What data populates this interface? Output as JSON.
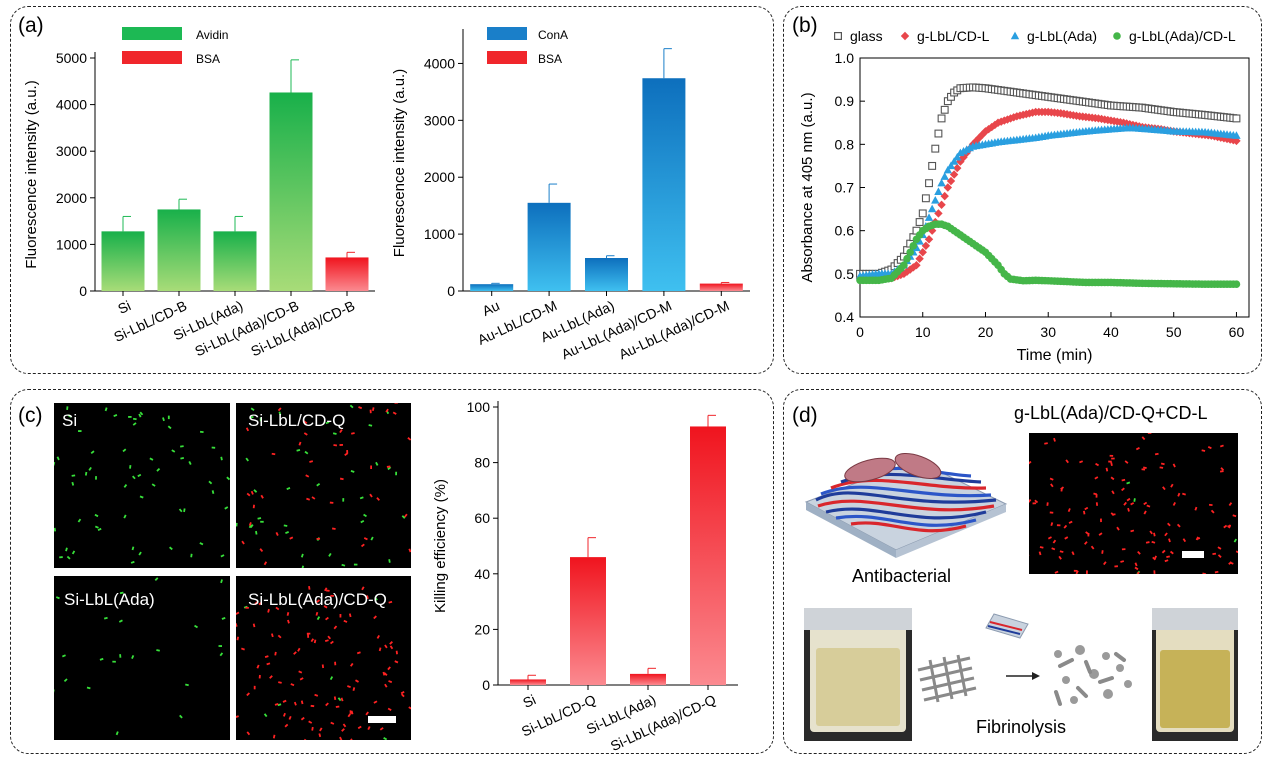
{
  "panels": {
    "a": "(a)",
    "b": "(b)",
    "c": "(c)",
    "d": "(d)"
  },
  "chart_data": [
    {
      "id": "a1",
      "type": "bar",
      "ylabel": "Fluorescence intensity (a.u.)",
      "ylim": [
        0,
        5000
      ],
      "yticks": [
        "0",
        "1000",
        "2000",
        "3000",
        "4000",
        "5000"
      ],
      "ytick_values": [
        0,
        1000,
        2000,
        3000,
        4000,
        5000
      ],
      "categories": [
        "Si",
        "Si-LbL/CD-B",
        "Si-LbL(Ada)",
        "Si-LbL(Ada)/CD-B",
        "Si-LbL(Ada)/CD-B"
      ],
      "values": [
        1280,
        1750,
        1280,
        4260,
        720
      ],
      "errors": [
        320,
        220,
        320,
        700,
        110
      ],
      "series_of_bar": [
        "Avidin",
        "Avidin",
        "Avidin",
        "Avidin",
        "BSA"
      ],
      "legend": [
        {
          "name": "Avidin",
          "color": "#1db954"
        },
        {
          "name": "BSA",
          "color": "#f0262b"
        }
      ]
    },
    {
      "id": "a2",
      "type": "bar",
      "ylabel": "Fluorescence intensity (a.u.)",
      "ylim": [
        0,
        4500
      ],
      "yticks": [
        "0",
        "1000",
        "2000",
        "3000",
        "4000"
      ],
      "ytick_values": [
        0,
        1000,
        2000,
        3000,
        4000
      ],
      "categories": [
        "Au",
        "Au-LbL/CD-M",
        "Au-LbL(Ada)",
        "Au-LbL(Ada)/CD-M",
        "Au-LbL(Ada)/CD-M"
      ],
      "values": [
        120,
        1550,
        580,
        3740,
        130
      ],
      "errors": [
        15,
        330,
        40,
        520,
        20
      ],
      "series_of_bar": [
        "ConA",
        "ConA",
        "ConA",
        "ConA",
        "BSA"
      ],
      "legend": [
        {
          "name": "ConA",
          "color": "#1a7fc9"
        },
        {
          "name": "BSA",
          "color": "#f0262b"
        }
      ]
    },
    {
      "id": "b",
      "type": "scatter",
      "xlabel": "Time (min)",
      "ylabel": "Absorbance at 405 nm (a.u.)",
      "xlim": [
        0,
        62
      ],
      "ylim": [
        0.4,
        1.0
      ],
      "xticks": [
        "0",
        "10",
        "20",
        "30",
        "40",
        "50",
        "60"
      ],
      "xtick_values": [
        0,
        10,
        20,
        30,
        40,
        50,
        60
      ],
      "yticks": [
        "0.4",
        "0.5",
        "0.6",
        "0.7",
        "0.8",
        "0.9",
        "1.0"
      ],
      "ytick_values": [
        0.4,
        0.5,
        0.6,
        0.7,
        0.8,
        0.9,
        1.0
      ],
      "series": [
        {
          "name": "glass",
          "color": "#555555",
          "marker": "square",
          "points": [
            [
              0,
              0.5
            ],
            [
              3,
              0.5
            ],
            [
              5,
              0.51
            ],
            [
              7,
              0.54
            ],
            [
              8,
              0.57
            ],
            [
              9,
              0.6
            ],
            [
              10,
              0.64
            ],
            [
              11,
              0.71
            ],
            [
              12,
              0.79
            ],
            [
              13,
              0.86
            ],
            [
              14,
              0.9
            ],
            [
              15,
              0.92
            ],
            [
              16,
              0.93
            ],
            [
              18,
              0.932
            ],
            [
              20,
              0.93
            ],
            [
              25,
              0.92
            ],
            [
              30,
              0.91
            ],
            [
              35,
              0.9
            ],
            [
              40,
              0.89
            ],
            [
              45,
              0.885
            ],
            [
              50,
              0.875
            ],
            [
              55,
              0.868
            ],
            [
              60,
              0.86
            ]
          ]
        },
        {
          "name": "g-LbL/CD-L",
          "color": "#e8464b",
          "marker": "diamond",
          "points": [
            [
              0,
              0.49
            ],
            [
              5,
              0.49
            ],
            [
              7,
              0.5
            ],
            [
              8,
              0.51
            ],
            [
              9,
              0.52
            ],
            [
              10,
              0.55
            ],
            [
              11,
              0.58
            ],
            [
              12,
              0.62
            ],
            [
              13,
              0.66
            ],
            [
              14,
              0.7
            ],
            [
              15,
              0.73
            ],
            [
              16,
              0.76
            ],
            [
              17,
              0.78
            ],
            [
              18,
              0.8
            ],
            [
              20,
              0.83
            ],
            [
              22,
              0.85
            ],
            [
              25,
              0.865
            ],
            [
              28,
              0.875
            ],
            [
              30,
              0.875
            ],
            [
              32,
              0.872
            ],
            [
              35,
              0.865
            ],
            [
              38,
              0.86
            ],
            [
              40,
              0.855
            ],
            [
              42,
              0.85
            ],
            [
              45,
              0.84
            ],
            [
              48,
              0.835
            ],
            [
              50,
              0.83
            ],
            [
              53,
              0.825
            ],
            [
              56,
              0.82
            ],
            [
              60,
              0.808
            ]
          ]
        },
        {
          "name": "g-LbL(Ada)",
          "color": "#2a9fe0",
          "marker": "triangle",
          "points": [
            [
              0,
              0.495
            ],
            [
              3,
              0.5
            ],
            [
              5,
              0.5
            ],
            [
              7,
              0.52
            ],
            [
              9,
              0.56
            ],
            [
              10,
              0.59
            ],
            [
              11,
              0.63
            ],
            [
              12,
              0.67
            ],
            [
              13,
              0.71
            ],
            [
              14,
              0.74
            ],
            [
              15,
              0.76
            ],
            [
              16,
              0.78
            ],
            [
              18,
              0.795
            ],
            [
              20,
              0.8
            ],
            [
              22,
              0.805
            ],
            [
              25,
              0.81
            ],
            [
              28,
              0.815
            ],
            [
              30,
              0.82
            ],
            [
              33,
              0.825
            ],
            [
              36,
              0.83
            ],
            [
              40,
              0.835
            ],
            [
              43,
              0.838
            ],
            [
              46,
              0.835
            ],
            [
              50,
              0.83
            ],
            [
              55,
              0.828
            ],
            [
              60,
              0.82
            ]
          ]
        },
        {
          "name": "g-LbL(Ada)/CD-L",
          "color": "#45b649",
          "marker": "circle",
          "points": [
            [
              0,
              0.485
            ],
            [
              3,
              0.485
            ],
            [
              5,
              0.49
            ],
            [
              7,
              0.52
            ],
            [
              8,
              0.55
            ],
            [
              9,
              0.58
            ],
            [
              10,
              0.6
            ],
            [
              11,
              0.61
            ],
            [
              12,
              0.615
            ],
            [
              13,
              0.615
            ],
            [
              14,
              0.61
            ],
            [
              15,
              0.6
            ],
            [
              16,
              0.59
            ],
            [
              17,
              0.58
            ],
            [
              18,
              0.57
            ],
            [
              19,
              0.56
            ],
            [
              20,
              0.55
            ],
            [
              21,
              0.535
            ],
            [
              22,
              0.52
            ],
            [
              23,
              0.5
            ],
            [
              24,
              0.488
            ],
            [
              26,
              0.484
            ],
            [
              28,
              0.485
            ],
            [
              30,
              0.484
            ],
            [
              33,
              0.482
            ],
            [
              36,
              0.48
            ],
            [
              40,
              0.48
            ],
            [
              45,
              0.478
            ],
            [
              50,
              0.477
            ],
            [
              55,
              0.476
            ],
            [
              60,
              0.476
            ]
          ]
        }
      ]
    },
    {
      "id": "c",
      "type": "bar",
      "ylabel": "Killing efficiency (%)",
      "ylim": [
        0,
        100
      ],
      "yticks": [
        "0",
        "20",
        "40",
        "60",
        "80",
        "100"
      ],
      "ytick_values": [
        0,
        20,
        40,
        60,
        80,
        100
      ],
      "categories": [
        "Si",
        "Si-LbL/CD-Q",
        "Si-LbL(Ada)",
        "Si-LbL(Ada)/CD-Q"
      ],
      "values": [
        2,
        46,
        4,
        93
      ],
      "errors": [
        1.5,
        7,
        2,
        4
      ]
    }
  ],
  "panel_c_images": [
    "Si",
    "Si-LbL/CD-Q",
    "Si-LbL(Ada)",
    "Si-LbL(Ada)/CD-Q"
  ],
  "panel_d": {
    "title": "g-LbL(Ada)/CD-Q+CD-L",
    "antibacterial": "Antibacterial",
    "fibrinolysis": "Fibrinolysis"
  }
}
